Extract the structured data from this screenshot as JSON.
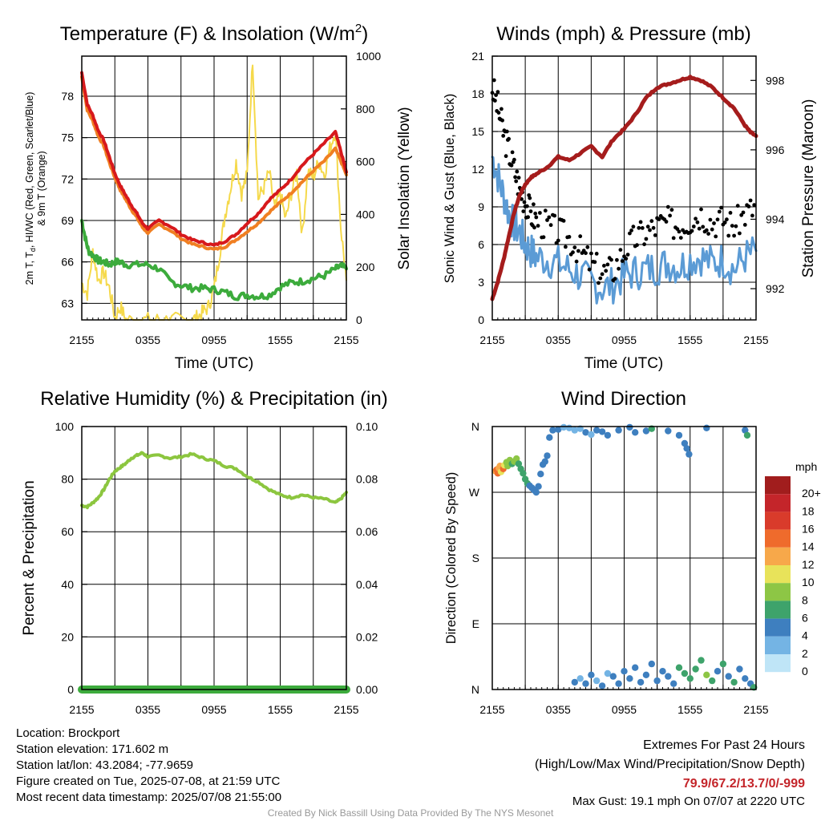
{
  "meta": {
    "location": "Location: Brockport",
    "elevation": "Station elevation: 171.602 m",
    "latlon": "Station lat/lon: 43.2084; -77.9659",
    "created": "Figure created on Tue, 2025-07-08, at 21:59 UTC",
    "recent": "Most recent data timestamp: 2025/07/08 21:55:00",
    "extremes_title": "Extremes For Past 24 Hours",
    "extremes_legend": "(High/Low/Max Wind/Precipitation/Snow Depth)",
    "extremes_values": "79.9/67.2/13.7/0/-999",
    "max_gust": "Max Gust: 19.1 mph On 07/07 at 2220 UTC",
    "credit": "Created By Nick Bassill Using Data Provided By The NYS Mesonet"
  },
  "colors": {
    "temp": "#d7191c",
    "heat_index": "#1a9641",
    "wind_chill": "#d7191c",
    "temp9m": "#f07f22",
    "dewpoint": "#3cab3c",
    "solar": "#f5d94b",
    "wind": "#5b9bd5",
    "gust": "#000000",
    "pressure": "#a51c1c",
    "rh": "#8cc63f",
    "precip": "#3cab3c"
  },
  "chart_data": [
    {
      "id": "temp",
      "type": "line",
      "title_main": "Temperature (F) & Insolation (W/m",
      "title_sup": "2",
      "title_end": ")",
      "xlabel": "Time (UTC)",
      "ylabel_lines": [
        "2m T, T",
        "d",
        ", HI/WC (Red, Green, Scarlet/Blue)",
        "& 9m T (Orange)"
      ],
      "ylabel_right": "Solar Insolation (Yellow)",
      "x_ticks": [
        "2155",
        "0355",
        "0955",
        "1555",
        "2155"
      ],
      "ylim": [
        61.8,
        80.9
      ],
      "y_ticks": [
        63,
        66,
        69,
        72,
        75,
        78
      ],
      "ylim_right": [
        0,
        1000
      ],
      "y_ticks_right": [
        0,
        200,
        400,
        600,
        800,
        1000
      ],
      "series": [
        {
          "name": "Solar Insolation (Yellow)",
          "axis": "right",
          "x": [
            0,
            0.5,
            1,
            1.5,
            2,
            2.5,
            3,
            3.5,
            4,
            5,
            6,
            7,
            8,
            9,
            10,
            10.5,
            11,
            11.5,
            12,
            12.5,
            13,
            13.5,
            14,
            14.5,
            15,
            15.5,
            16,
            16.5,
            17,
            17.5,
            18,
            18.5,
            19,
            19.5,
            20,
            20.5,
            21,
            21.5,
            22,
            22.5,
            23,
            23.5,
            24
          ],
          "values": [
            140,
            100,
            260,
            150,
            180,
            120,
            10,
            50,
            0,
            0,
            0,
            0,
            0,
            0,
            0,
            10,
            30,
            50,
            120,
            250,
            400,
            500,
            600,
            480,
            550,
            990,
            460,
            500,
            560,
            420,
            480,
            380,
            480,
            560,
            320,
            560,
            540,
            600,
            550,
            650,
            720,
            350,
            150
          ]
        },
        {
          "name": "2m T (Red)",
          "x": [
            0,
            0.5,
            1,
            1.5,
            2,
            2.5,
            3,
            3.5,
            4,
            4.5,
            5,
            5.5,
            6,
            7,
            8,
            9,
            10,
            11,
            12,
            13,
            14,
            15,
            16,
            17,
            18,
            19,
            20,
            21,
            22,
            23,
            23.5,
            24
          ],
          "values": [
            79.7,
            77.4,
            76.6,
            75.5,
            74.8,
            73.6,
            72.4,
            71.5,
            70.8,
            70.1,
            69.5,
            68.8,
            68.4,
            69.0,
            68.6,
            68.0,
            67.6,
            67.4,
            67.2,
            67.5,
            68.0,
            68.8,
            69.5,
            70.5,
            71.2,
            72.0,
            73.0,
            73.8,
            74.6,
            75.4,
            74.0,
            72.5
          ]
        },
        {
          "name": "9m T (Orange)",
          "x": [
            0,
            0.5,
            1,
            1.5,
            2,
            2.5,
            3,
            3.5,
            4,
            4.5,
            5,
            5.5,
            6,
            7,
            8,
            9,
            10,
            11,
            12,
            13,
            14,
            15,
            16,
            17,
            18,
            19,
            20,
            21,
            22,
            23,
            23.5,
            24
          ],
          "values": [
            79.4,
            77.0,
            76.2,
            75.1,
            74.4,
            73.2,
            72.1,
            71.2,
            70.5,
            69.8,
            69.2,
            68.5,
            68.1,
            68.7,
            68.3,
            67.7,
            67.3,
            67.1,
            66.9,
            67.1,
            67.6,
            68.2,
            68.8,
            69.6,
            70.3,
            71.0,
            71.8,
            72.6,
            73.3,
            74.2,
            73.3,
            72.3
          ]
        },
        {
          "name": "Td (Green)",
          "x": [
            0,
            0.3,
            0.6,
            1,
            1.5,
            2,
            2.5,
            3,
            3.5,
            4,
            5,
            6,
            7,
            8,
            9,
            10,
            11,
            12,
            13,
            14,
            15,
            16,
            17,
            18,
            19,
            20,
            21,
            22,
            23,
            23.5,
            24
          ],
          "values": [
            69.0,
            67.8,
            66.8,
            66.5,
            66.1,
            66.0,
            65.8,
            66.0,
            66.0,
            65.8,
            65.8,
            65.8,
            65.5,
            64.6,
            64.3,
            64.1,
            64.1,
            64.0,
            63.8,
            63.5,
            63.6,
            63.5,
            63.6,
            64.2,
            64.5,
            64.6,
            64.8,
            65.0,
            65.5,
            65.7,
            65.5
          ]
        }
      ]
    },
    {
      "id": "wind",
      "type": "line",
      "title": "Winds (mph) & Pressure (mb)",
      "xlabel": "Time (UTC)",
      "ylabel": "Sonic Wind & Gust (Blue, Black)",
      "ylabel_right": "Station Pressure (Maroon)",
      "x_ticks": [
        "2155",
        "0355",
        "0955",
        "1555",
        "2155"
      ],
      "ylim": [
        0,
        21
      ],
      "y_ticks": [
        0,
        3,
        6,
        9,
        12,
        15,
        18,
        21
      ],
      "ylim_right": [
        991.1,
        998.7
      ],
      "y_ticks_right": [
        992,
        994,
        996,
        998
      ],
      "series": [
        {
          "name": "Sonic Wind (Blue)",
          "x": [
            0,
            0.5,
            1,
            1.5,
            2,
            2.5,
            3,
            3.5,
            4,
            5,
            6,
            7,
            8,
            9,
            10,
            11,
            12,
            13,
            14,
            15,
            16,
            17,
            18,
            19,
            20,
            21,
            22,
            23,
            24
          ],
          "values": [
            13.0,
            11.5,
            10.0,
            8.5,
            7.5,
            7.0,
            6.0,
            5.5,
            5.0,
            4.8,
            4.5,
            4.0,
            3.5,
            3.0,
            2.5,
            2.8,
            3.5,
            3.8,
            4.0,
            4.2,
            4.5,
            4.2,
            4.8,
            5.0,
            4.5,
            4.8,
            4.0,
            5.0,
            5.5
          ]
        },
        {
          "name": "Gust (Black)",
          "x": [
            0,
            0.5,
            1,
            1.5,
            2,
            2.5,
            3,
            3.5,
            4,
            5,
            6,
            7,
            8,
            9,
            10,
            11,
            12,
            13,
            14,
            15,
            16,
            17,
            18,
            19,
            20,
            21,
            22,
            23,
            24
          ],
          "values": [
            18.5,
            17.0,
            15.0,
            13.5,
            12.0,
            10.5,
            9.5,
            8.5,
            8.0,
            7.5,
            7.0,
            6.5,
            5.5,
            4.5,
            3.8,
            4.0,
            5.5,
            6.5,
            7.0,
            7.5,
            7.8,
            7.5,
            8.0,
            8.5,
            7.8,
            8.0,
            7.5,
            8.5,
            9.0
          ]
        },
        {
          "name": "Station Pressure (Maroon)",
          "axis": "right",
          "x": [
            0,
            0.5,
            1,
            1.5,
            2,
            2.5,
            3,
            3.5,
            4,
            5,
            6,
            7,
            8,
            9,
            10,
            11,
            12,
            13,
            14,
            15,
            16,
            17,
            18,
            19,
            20,
            21,
            22,
            23,
            23.5,
            24
          ],
          "values": [
            991.7,
            992.2,
            992.8,
            993.5,
            994.2,
            994.7,
            995.0,
            995.2,
            995.3,
            995.5,
            995.8,
            995.7,
            995.9,
            996.1,
            995.8,
            996.3,
            996.6,
            997.0,
            997.5,
            997.8,
            997.9,
            998.0,
            998.1,
            998.0,
            997.8,
            997.5,
            997.2,
            996.7,
            996.5,
            996.4
          ]
        }
      ]
    },
    {
      "id": "rh",
      "type": "line",
      "title": "Relative Humidity (%) & Precipitation (in)",
      "ylabel": "Percent & Precipitation",
      "x_ticks": [
        "2155",
        "0355",
        "0955",
        "1555",
        "2155"
      ],
      "ylim": [
        0,
        100
      ],
      "y_ticks": [
        0,
        20,
        40,
        60,
        80,
        100
      ],
      "ylim_right": [
        0,
        0.1
      ],
      "y_ticks_right": [
        "0.00",
        "0.02",
        "0.04",
        "0.06",
        "0.08",
        "0.10"
      ],
      "series": [
        {
          "name": "Relative Humidity",
          "x": [
            0,
            0.5,
            1,
            1.5,
            2,
            2.5,
            3,
            3.5,
            4,
            4.5,
            5,
            5.5,
            6,
            7,
            8,
            9,
            10,
            11,
            12,
            13,
            14,
            15,
            16,
            17,
            18,
            19,
            20,
            21,
            22,
            23,
            23.5,
            24
          ],
          "values": [
            70,
            69.5,
            71,
            73,
            76,
            80,
            83,
            84.5,
            86,
            88,
            89,
            90,
            88.5,
            89,
            88,
            88.5,
            89.5,
            88,
            87,
            85,
            84,
            81,
            79,
            76,
            74,
            73,
            74,
            73,
            72.5,
            71,
            72.5,
            75
          ]
        },
        {
          "name": "Precipitation",
          "x": [
            0,
            24
          ],
          "values": [
            0,
            0
          ]
        }
      ]
    },
    {
      "id": "wdir",
      "type": "scatter",
      "title": "Wind Direction",
      "ylabel": "Direction (Colored By Speed)",
      "x_ticks": [
        "2155",
        "0355",
        "0955",
        "1555",
        "2155"
      ],
      "y_ticks": [
        "N",
        "E",
        "S",
        "W",
        "N"
      ],
      "ylim": [
        0,
        360
      ],
      "legend_title": "mph",
      "legend_labels": [
        "20+",
        "18",
        "16",
        "14",
        "12",
        "10",
        "8",
        "6",
        "4",
        "2",
        "0"
      ],
      "legend_colors": [
        "#a11d1d",
        "#c4252a",
        "#d93b2b",
        "#ef6b2c",
        "#f7a84a",
        "#e8e35a",
        "#8dc645",
        "#3ea36b",
        "#3e7fbf",
        "#74b4e4",
        "#bfe5f7"
      ],
      "points": [
        [
          0.3,
          299,
          12
        ],
        [
          0.4,
          301,
          13
        ],
        [
          0.5,
          296,
          14
        ],
        [
          0.6,
          303,
          12
        ],
        [
          0.7,
          306,
          11
        ],
        [
          0.8,
          298,
          10
        ],
        [
          1.0,
          302,
          13
        ],
        [
          1.1,
          307,
          9
        ],
        [
          1.3,
          311,
          7
        ],
        [
          1.4,
          306,
          8
        ],
        [
          1.6,
          314,
          7
        ],
        [
          1.8,
          309,
          6
        ],
        [
          2.0,
          312,
          8
        ],
        [
          2.2,
          316,
          7
        ],
        [
          2.4,
          309,
          6
        ],
        [
          2.6,
          302,
          5
        ],
        [
          2.8,
          296,
          5
        ],
        [
          3.0,
          288,
          6
        ],
        [
          3.2,
          282,
          5
        ],
        [
          3.4,
          279,
          4
        ],
        [
          3.6,
          276,
          4
        ],
        [
          3.8,
          273,
          4
        ],
        [
          4.0,
          270,
          4
        ],
        [
          4.2,
          278,
          4
        ],
        [
          4.4,
          295,
          4
        ],
        [
          4.6,
          308,
          4
        ],
        [
          4.8,
          312,
          3
        ],
        [
          5.0,
          320,
          4
        ],
        [
          5.2,
          345,
          3
        ],
        [
          5.5,
          355,
          3
        ],
        [
          6.0,
          356,
          3
        ],
        [
          6.5,
          359,
          2
        ],
        [
          7.0,
          358,
          2
        ],
        [
          7.5,
          355,
          2
        ],
        [
          8.0,
          357,
          2
        ],
        [
          8.5,
          352,
          3
        ],
        [
          9.0,
          349,
          2
        ],
        [
          9.5,
          355,
          3
        ],
        [
          10.0,
          353,
          3
        ],
        [
          10.5,
          348,
          3
        ],
        [
          11.5,
          355,
          4
        ],
        [
          12.5,
          359,
          4
        ],
        [
          13.0,
          352,
          3
        ],
        [
          14.0,
          354,
          4
        ],
        [
          14.5,
          357,
          6
        ],
        [
          16.0,
          354,
          4
        ],
        [
          17.0,
          348,
          4
        ],
        [
          17.5,
          337,
          4
        ],
        [
          17.7,
          330,
          4
        ],
        [
          17.9,
          322,
          4
        ],
        [
          19.5,
          358,
          4
        ],
        [
          23.0,
          355,
          4
        ],
        [
          23.2,
          348,
          5
        ],
        [
          7.5,
          10,
          3
        ],
        [
          8.0,
          15,
          2
        ],
        [
          8.5,
          8,
          4
        ],
        [
          9.0,
          20,
          3
        ],
        [
          9.5,
          12,
          2
        ],
        [
          10.0,
          5,
          3
        ],
        [
          10.5,
          22,
          2
        ],
        [
          11.0,
          18,
          3
        ],
        [
          11.5,
          8,
          4
        ],
        [
          12.0,
          25,
          3
        ],
        [
          12.5,
          15,
          4
        ],
        [
          13.0,
          30,
          3
        ],
        [
          13.5,
          10,
          4
        ],
        [
          14.0,
          20,
          4
        ],
        [
          14.5,
          35,
          4
        ],
        [
          15.0,
          12,
          4
        ],
        [
          15.5,
          25,
          3
        ],
        [
          16.0,
          18,
          4
        ],
        [
          16.5,
          8,
          4
        ],
        [
          17.0,
          30,
          6
        ],
        [
          17.5,
          22,
          5
        ],
        [
          18.0,
          15,
          6
        ],
        [
          18.5,
          28,
          6
        ],
        [
          19.0,
          40,
          6
        ],
        [
          19.5,
          20,
          7
        ],
        [
          20.0,
          12,
          5
        ],
        [
          20.5,
          25,
          4
        ],
        [
          21.0,
          35,
          5
        ],
        [
          21.5,
          18,
          4
        ],
        [
          22.0,
          10,
          5
        ],
        [
          22.5,
          28,
          4
        ],
        [
          23.0,
          15,
          4
        ],
        [
          23.5,
          8,
          4
        ],
        [
          23.8,
          3,
          5
        ]
      ]
    }
  ]
}
